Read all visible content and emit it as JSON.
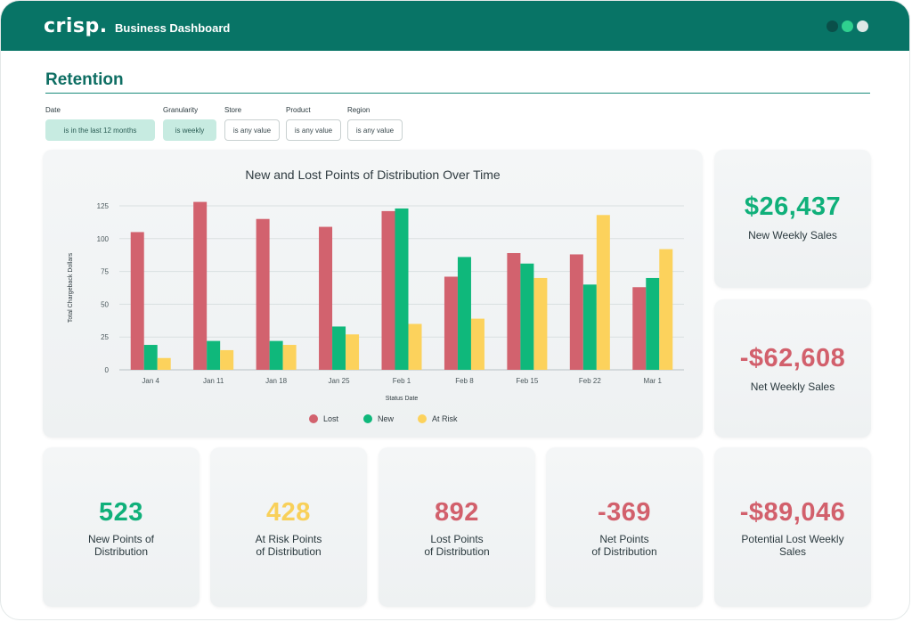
{
  "header": {
    "logo_text": "crisp.",
    "title": "Business Dashboard",
    "window_dots": [
      {
        "name": "dot-dark",
        "color": "#0a4f49"
      },
      {
        "name": "dot-green",
        "color": "#2fd08f"
      },
      {
        "name": "dot-light",
        "color": "#dde8e6"
      }
    ]
  },
  "section": {
    "title": "Retention"
  },
  "filters": [
    {
      "label": "Date",
      "value": "is in the last 12 months",
      "active": true
    },
    {
      "label": "Granularity",
      "value": "is weekly",
      "active": true
    },
    {
      "label": "Store",
      "value": "is any value",
      "active": false
    },
    {
      "label": "Product",
      "value": "is any value",
      "active": false
    },
    {
      "label": "Region",
      "value": "is any value",
      "active": false
    }
  ],
  "chart_data": {
    "type": "bar",
    "title": "New and Lost Points of Distribution Over Time",
    "xlabel": "Status Date",
    "ylabel": "Total Chargeback Dollars",
    "ylim": [
      0,
      125
    ],
    "yticks": [
      0,
      25,
      50,
      75,
      100,
      125
    ],
    "grid": true,
    "legend_position": "bottom",
    "categories": [
      "Jan 4",
      "Jan 11",
      "Jan 18",
      "Jan 25",
      "Feb 1",
      "Feb 8",
      "Feb 15",
      "Feb 22",
      "Mar 1"
    ],
    "series": [
      {
        "name": "Lost",
        "color": "#d2626e",
        "values": [
          105,
          128,
          115,
          109,
          121,
          71,
          89,
          88,
          63
        ]
      },
      {
        "name": "New",
        "color": "#0fb87b",
        "values": [
          19,
          22,
          22,
          33,
          123,
          86,
          81,
          65,
          70
        ]
      },
      {
        "name": "At Risk",
        "color": "#fcd25c",
        "values": [
          9,
          15,
          19,
          27,
          35,
          39,
          70,
          118,
          92
        ]
      }
    ]
  },
  "kpis": {
    "new_weekly_sales": {
      "value": "$26,437",
      "label": "New Weekly Sales",
      "color": "#10b07a"
    },
    "net_weekly_sales": {
      "value": "-$62,608",
      "label": "Net Weekly Sales",
      "color": "#d2606c"
    },
    "new_points": {
      "value": "523",
      "label_1": "New Points of",
      "label_2": "Distribution",
      "color": "#10b07a"
    },
    "at_risk_points": {
      "value": "428",
      "label_1": "At Risk Points",
      "label_2": "of Distribution",
      "color": "#f8d05a"
    },
    "lost_points": {
      "value": "892",
      "label_1": "Lost Points",
      "label_2": "of Distribution",
      "color": "#d2606c"
    },
    "net_points": {
      "value": "-369",
      "label_1": "Net Points",
      "label_2": "of Distribution",
      "color": "#d2606c"
    },
    "potential_lost": {
      "value": "-$89,046",
      "label_1": "Potential Lost Weekly",
      "label_2": "Sales",
      "color": "#d2606c"
    }
  }
}
